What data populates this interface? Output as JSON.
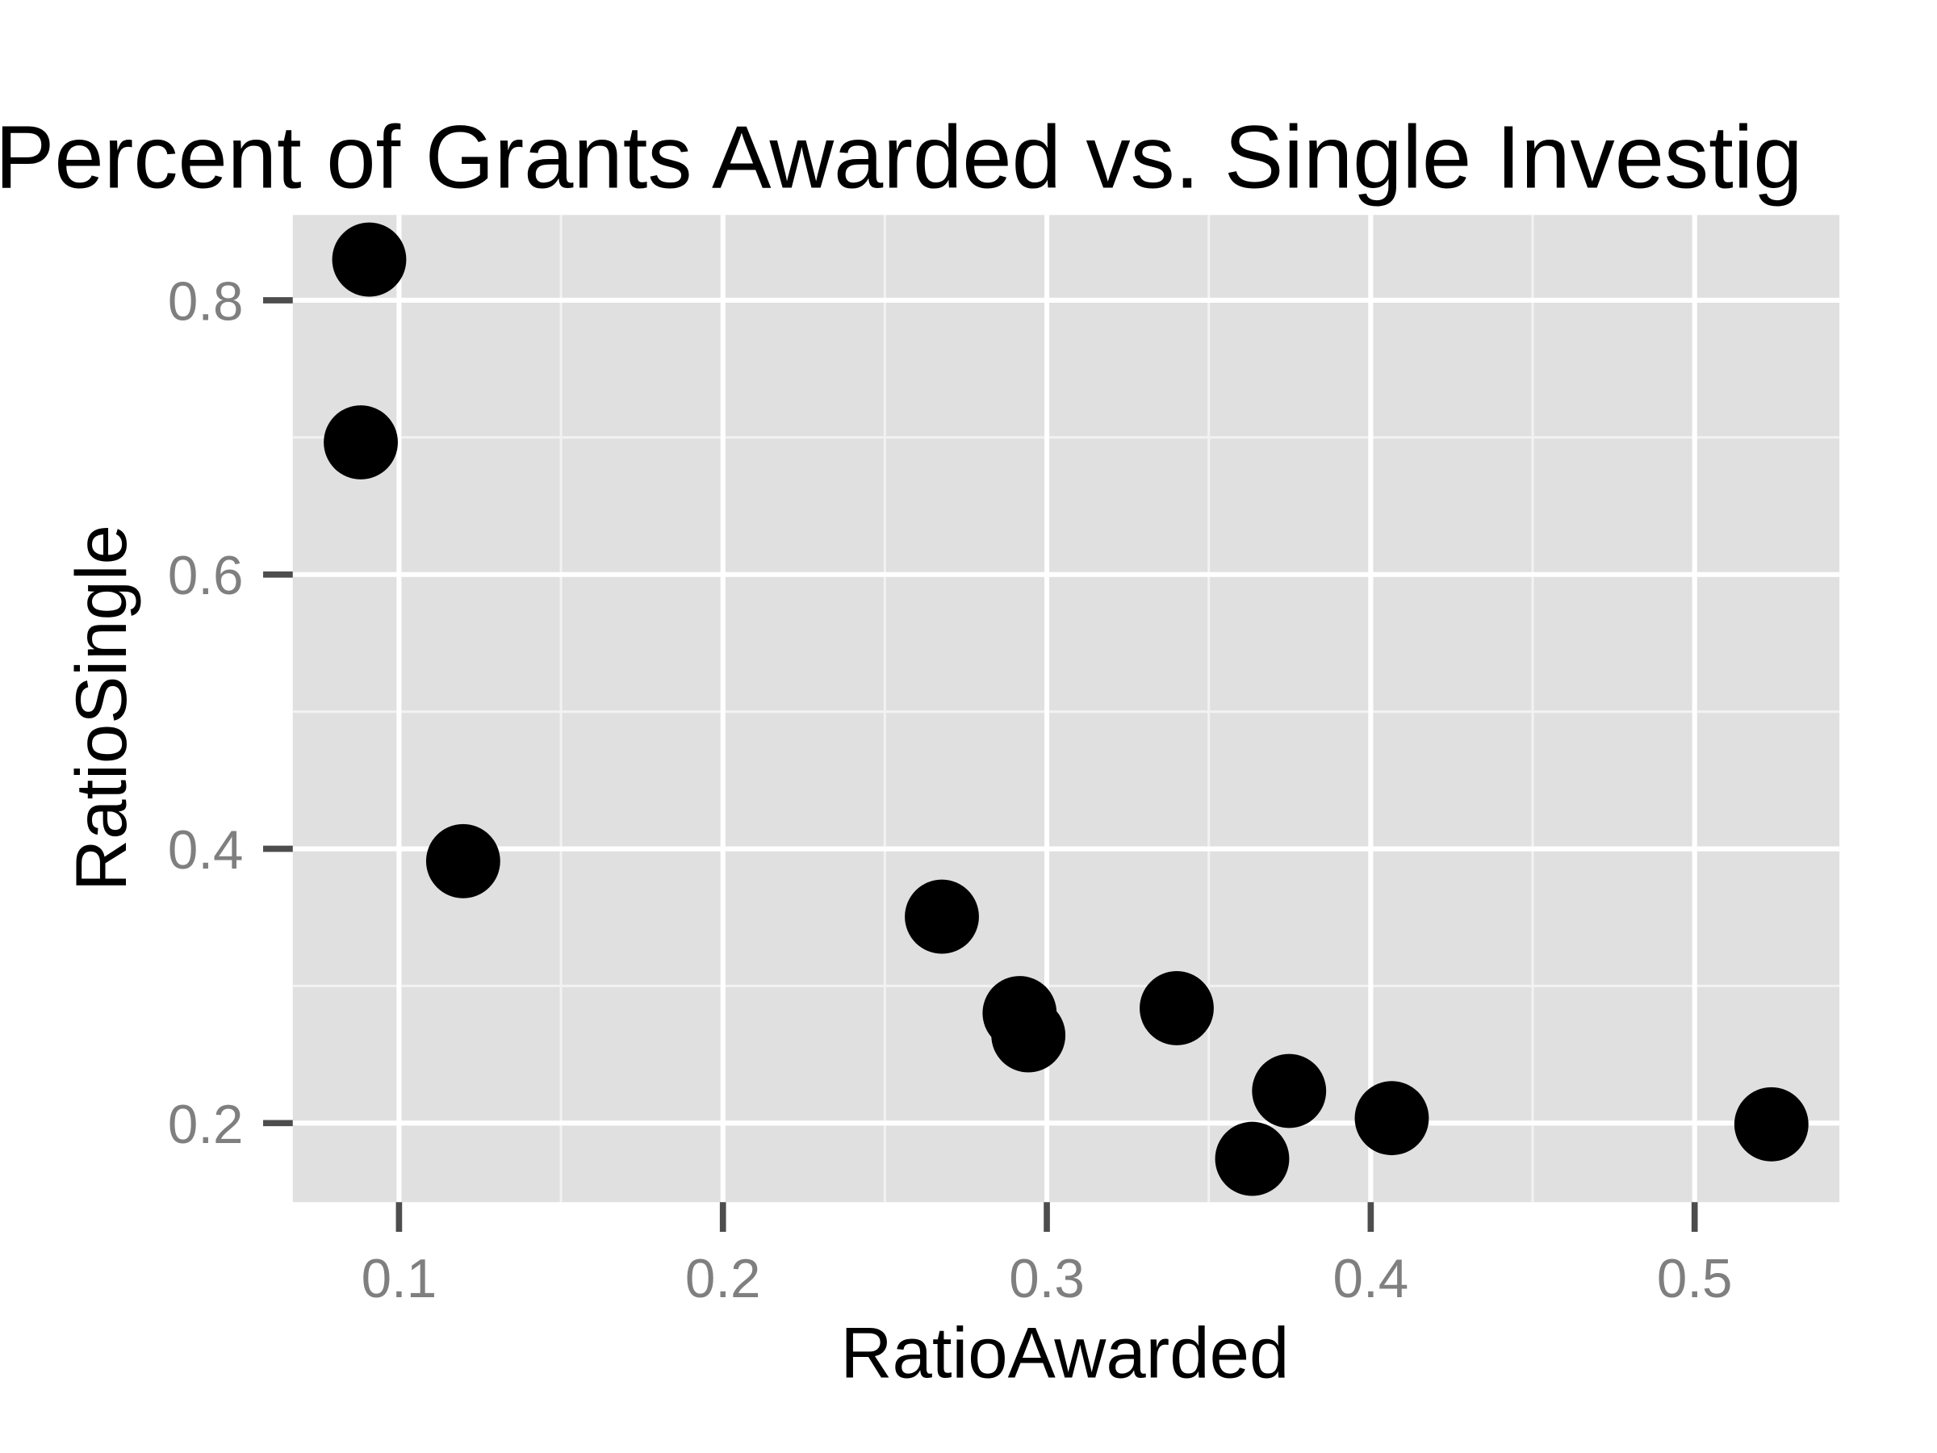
{
  "chart_data": {
    "type": "scatter",
    "title": "Percent of Grants Awarded vs. Single Investig",
    "x_label": "RatioAwarded",
    "y_label": "RatioSingle",
    "x": [
      0.0908,
      0.0882,
      0.1198,
      0.2676,
      0.2916,
      0.2943,
      0.3401,
      0.3748,
      0.3634,
      0.4065,
      0.5237
    ],
    "values": [
      0.8297,
      0.6964,
      0.391,
      0.3505,
      0.2802,
      0.264,
      0.2838,
      0.2234,
      0.1739,
      0.2036,
      0.1991
    ],
    "color": "#000000",
    "xlim": [
      0.0672,
      0.5447
    ],
    "ylim": [
      0.1423,
      0.8622
    ],
    "xticks": [
      0.1,
      0.2,
      0.3,
      0.4,
      0.5
    ],
    "yticks": [
      0.2,
      0.4,
      0.6,
      0.8
    ],
    "x_minor_ticks": [
      0.15,
      0.25,
      0.35,
      0.45
    ],
    "y_minor_ticks": [
      0.3,
      0.5,
      0.7
    ],
    "grid": true
  }
}
